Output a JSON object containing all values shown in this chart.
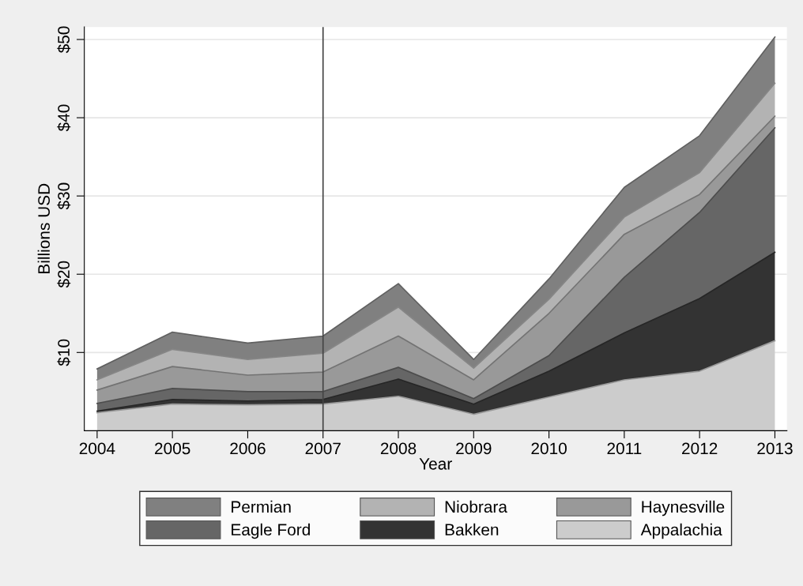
{
  "chart_data": {
    "type": "area",
    "stacked": true,
    "xlabel": "Year",
    "ylabel": "Billions USD",
    "x": [
      2004,
      2005,
      2006,
      2007,
      2008,
      2009,
      2010,
      2011,
      2012,
      2013
    ],
    "series": [
      {
        "name": "Appalachia",
        "color": "#cccccc",
        "values": [
          2.3,
          3.4,
          3.3,
          3.4,
          4.4,
          2.1,
          4.3,
          6.5,
          7.6,
          11.5
        ]
      },
      {
        "name": "Bakken",
        "color": "#333333",
        "values": [
          0.2,
          0.6,
          0.5,
          0.6,
          2.2,
          1.3,
          3.3,
          6.0,
          9.3,
          11.3
        ]
      },
      {
        "name": "Eagle Ford",
        "color": "#666666",
        "values": [
          1.0,
          1.4,
          1.2,
          1.0,
          1.5,
          0.7,
          2.0,
          7.1,
          11.0,
          15.9
        ]
      },
      {
        "name": "Haynesville",
        "color": "#999999",
        "values": [
          1.7,
          2.8,
          2.1,
          2.5,
          4.0,
          2.4,
          5.4,
          5.5,
          2.3,
          1.5
        ]
      },
      {
        "name": "Niobrara",
        "color": "#b3b3b3",
        "values": [
          1.3,
          2.2,
          2.0,
          2.4,
          3.7,
          1.5,
          1.8,
          2.2,
          2.8,
          4.2
        ]
      },
      {
        "name": "Permian",
        "color": "#808080",
        "values": [
          1.4,
          2.2,
          2.1,
          2.2,
          3.0,
          1.1,
          2.6,
          3.8,
          4.7,
          5.9
        ]
      }
    ],
    "xlim": [
      2003.83,
      2013.16
    ],
    "xticks": [
      2004,
      2005,
      2006,
      2007,
      2008,
      2009,
      2010,
      2011,
      2012,
      2013
    ],
    "ylim": [
      0,
      51.6
    ],
    "yticks": [
      {
        "value": 10,
        "label": "$10"
      },
      {
        "value": 20,
        "label": "$20"
      },
      {
        "value": 30,
        "label": "$30"
      },
      {
        "value": 40,
        "label": "$40"
      },
      {
        "value": 50,
        "label": "$50"
      }
    ],
    "ref_lines": [
      {
        "axis": "x",
        "value": 2007,
        "color": "#444444"
      }
    ],
    "grid": "y",
    "legend": "bottom"
  }
}
